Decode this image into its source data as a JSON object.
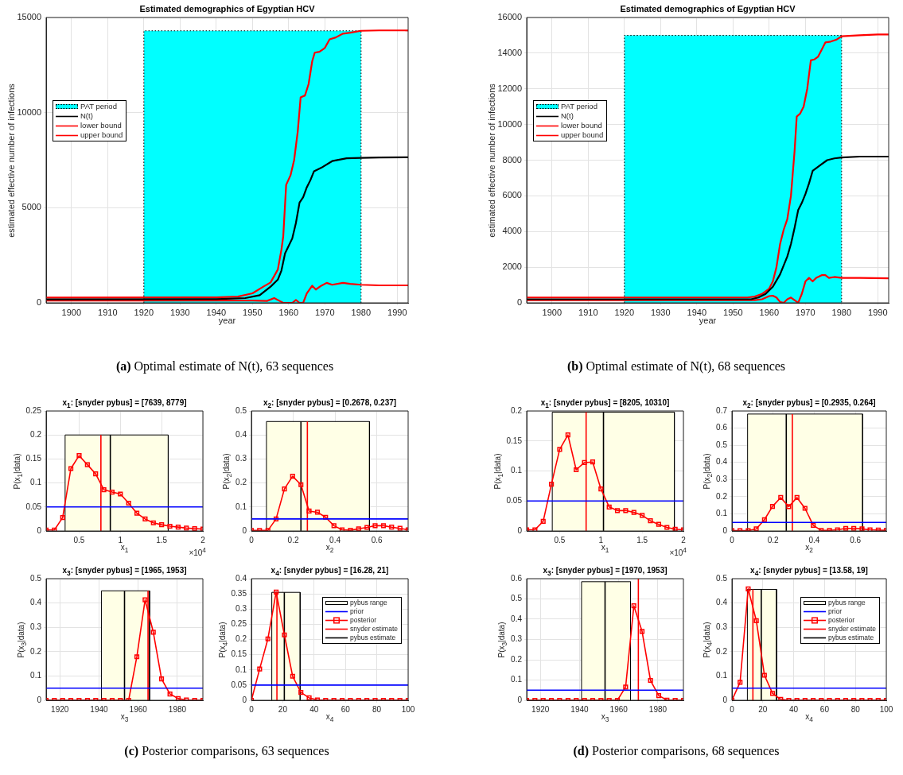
{
  "chart_data": [
    {
      "type": "line",
      "title": "Estimated demographics of Egyptian HCV",
      "xlabel": "year",
      "ylabel": "estimated effective number of infections",
      "xlim": [
        1893,
        1993
      ],
      "xticks": [
        1900,
        1910,
        1920,
        1930,
        1940,
        1950,
        1960,
        1970,
        1980,
        1990
      ],
      "ylim": [
        0,
        15000
      ],
      "yticks": [
        0,
        5000,
        10000,
        15000
      ],
      "grid": true,
      "legend": "left",
      "annotations": [
        "(a) Optimal estimate of N(t), 63 sequences"
      ],
      "series": [
        {
          "name": "PAT period",
          "type": "area",
          "color": "#00ffff",
          "line_style": "dotted",
          "x": [
            1920,
            1920,
            1980,
            1980
          ],
          "values": [
            0,
            14300,
            14300,
            0
          ]
        },
        {
          "name": "N(t)",
          "type": "line",
          "color": "#000000",
          "x": [
            1893,
            1940,
            1948,
            1952,
            1955,
            1957,
            1958,
            1959,
            1961,
            1962,
            1963,
            1964,
            1965,
            1966,
            1967,
            1969,
            1972,
            1976,
            1980,
            1985,
            1993
          ],
          "values": [
            180,
            190,
            250,
            400,
            850,
            1220,
            1700,
            2600,
            3390,
            4200,
            5270,
            5550,
            6070,
            6450,
            6920,
            7100,
            7450,
            7600,
            7620,
            7640,
            7650
          ]
        },
        {
          "name": "lower bound",
          "type": "line",
          "color": "#ff0000",
          "x": [
            1893,
            1950,
            1954,
            1956,
            1957.5,
            1958.5,
            1961,
            1962,
            1963,
            1964,
            1965,
            1966.5,
            1967.5,
            1969,
            1970.5,
            1972,
            1975,
            1977,
            1980,
            1985,
            1993
          ],
          "values": [
            120,
            120,
            100,
            250,
            100,
            0,
            0,
            150,
            0,
            0,
            500,
            900,
            700,
            900,
            1050,
            950,
            1050,
            1000,
            950,
            920,
            920
          ]
        },
        {
          "name": "upper bound",
          "type": "line",
          "color": "#ff0000",
          "x": [
            1893,
            1940,
            1946,
            1950,
            1953,
            1955,
            1957,
            1958,
            1958.5,
            1959.3,
            1960.5,
            1961.5,
            1962.5,
            1963.3,
            1964.5,
            1965.5,
            1966.5,
            1967.2,
            1968.5,
            1970,
            1971.3,
            1973,
            1975,
            1977,
            1980,
            1985,
            1993
          ],
          "values": [
            280,
            290,
            330,
            500,
            850,
            1070,
            1750,
            2800,
            3500,
            6200,
            6700,
            7500,
            9000,
            10800,
            10900,
            11500,
            12700,
            13150,
            13200,
            13400,
            13850,
            13950,
            14150,
            14200,
            14300,
            14320,
            14320
          ]
        }
      ]
    },
    {
      "type": "line",
      "title": "Estimated demographics of Egyptian HCV",
      "xlabel": "year",
      "ylabel": "estimated effective number of infections",
      "xlim": [
        1893,
        1993
      ],
      "xticks": [
        1900,
        1910,
        1920,
        1930,
        1940,
        1950,
        1960,
        1970,
        1980,
        1990
      ],
      "ylim": [
        0,
        16000
      ],
      "yticks": [
        0,
        2000,
        4000,
        6000,
        8000,
        10000,
        12000,
        14000,
        16000
      ],
      "grid": true,
      "legend": "left",
      "annotations": [
        "(b) Optimal estimate of N(t), 68 sequences"
      ],
      "series": [
        {
          "name": "PAT period",
          "type": "area",
          "color": "#00ffff",
          "line_style": "dotted",
          "x": [
            1920,
            1920,
            1980,
            1980
          ],
          "values": [
            0,
            15000,
            15000,
            0
          ]
        },
        {
          "name": "N(t)",
          "type": "line",
          "color": "#000000",
          "x": [
            1893,
            1955,
            1957,
            1959,
            1961,
            1963,
            1965,
            1966,
            1967,
            1968,
            1969,
            1970,
            1971,
            1972,
            1974,
            1976,
            1978,
            1980,
            1985,
            1993
          ],
          "values": [
            200,
            200,
            300,
            500,
            900,
            1600,
            2600,
            3300,
            4200,
            5200,
            5600,
            6100,
            6700,
            7400,
            7700,
            8000,
            8100,
            8150,
            8200,
            8200
          ]
        },
        {
          "name": "lower bound",
          "type": "line",
          "color": "#ff0000",
          "x": [
            1893,
            1956,
            1958,
            1960,
            1961,
            1962,
            1963,
            1964,
            1965,
            1966,
            1967,
            1968,
            1969,
            1970,
            1971,
            1972,
            1973,
            1974.5,
            1975.5,
            1976.5,
            1978,
            1980,
            1985,
            1993
          ],
          "values": [
            150,
            150,
            200,
            380,
            400,
            300,
            50,
            0,
            200,
            300,
            150,
            0,
            500,
            1200,
            1400,
            1200,
            1400,
            1550,
            1550,
            1400,
            1450,
            1400,
            1400,
            1380
          ]
        },
        {
          "name": "upper bound",
          "type": "line",
          "color": "#ff0000",
          "x": [
            1893,
            1954,
            1956,
            1958,
            1960,
            1961,
            1962,
            1963,
            1964,
            1965,
            1966,
            1967,
            1967.6,
            1968.5,
            1969.5,
            1970.5,
            1971.5,
            1972.5,
            1973.5,
            1974.5,
            1975.5,
            1977,
            1978.5,
            1980,
            1985,
            1990,
            1993
          ],
          "values": [
            300,
            300,
            350,
            500,
            800,
            1200,
            2000,
            3300,
            4100,
            4700,
            6000,
            8500,
            10450,
            10600,
            11000,
            12000,
            13600,
            13650,
            13800,
            14200,
            14600,
            14650,
            14750,
            14950,
            15000,
            15050,
            15050
          ]
        }
      ]
    },
    {
      "type": "line",
      "title": "x$_{1}$: [snyder pybus] = [7639, 8779]",
      "xlabel": "x$_{1}$",
      "ylabel": "P(x$_{1}$|data)",
      "xlim": [
        0.1,
        2
      ],
      "xticks": [
        0.5,
        1,
        1.5,
        2
      ],
      "ylim": [
        0,
        0.25
      ],
      "yticks": [
        0,
        0.05,
        0.1,
        0.15,
        0.2,
        0.25
      ],
      "grid": true,
      "annotations": [
        "×10$^{4}$"
      ],
      "series": [
        {
          "type": "area",
          "color": "#ffffe6",
          "x": [
            0.33,
            0.33,
            1.58,
            1.58
          ],
          "values": [
            0,
            0.2,
            0.2,
            0
          ]
        },
        {
          "color": "#0000ff",
          "x": [
            0.1,
            2
          ],
          "values": [
            0.05,
            0.05
          ]
        },
        {
          "color": "#ff0000",
          "marker": "square",
          "x": [
            0.1,
            0.2,
            0.3,
            0.4,
            0.5,
            0.6,
            0.7,
            0.8,
            0.9,
            1,
            1.1,
            1.2,
            1.3,
            1.4,
            1.5,
            1.6,
            1.7,
            1.8,
            1.9,
            2
          ],
          "values": [
            0.002,
            0.002,
            0.028,
            0.13,
            0.157,
            0.138,
            0.119,
            0.086,
            0.081,
            0.077,
            0.058,
            0.037,
            0.025,
            0.017,
            0.013,
            0.01,
            0.008,
            0.006,
            0.005,
            0.004
          ]
        },
        {
          "color": "#ff0000",
          "x": [
            0.7639,
            0.7639
          ],
          "values": [
            0,
            0.2
          ]
        },
        {
          "color": "#000000",
          "x": [
            0.8779,
            0.8779
          ],
          "values": [
            0,
            0.2
          ]
        }
      ]
    },
    {
      "type": "line",
      "title": "x$_{2}$: [snyder pybus] = [0.2678, 0.237]",
      "xlabel": "x$_{2}$",
      "ylabel": "P(x$_{2}$|data)",
      "xlim": [
        0,
        0.75
      ],
      "xticks": [
        0,
        0.2,
        0.4,
        0.6
      ],
      "ylim": [
        0,
        0.5
      ],
      "yticks": [
        0,
        0.1,
        0.2,
        0.3,
        0.4,
        0.5
      ],
      "grid": true,
      "series": [
        {
          "type": "area",
          "color": "#ffffe6",
          "x": [
            0.072,
            0.072,
            0.565,
            0.565
          ],
          "values": [
            0,
            0.456,
            0.456,
            0
          ]
        },
        {
          "type": "line",
          "color": "#0000ff",
          "x": [
            0,
            0.75
          ],
          "values": [
            0.05,
            0.05
          ]
        },
        {
          "type": "line",
          "color": "#ff0000",
          "marker": "square",
          "x": [
            0,
            0.039,
            0.079,
            0.118,
            0.158,
            0.197,
            0.237,
            0.276,
            0.316,
            0.355,
            0.395,
            0.434,
            0.474,
            0.513,
            0.553,
            0.592,
            0.632,
            0.671,
            0.711,
            0.75
          ],
          "values": [
            0.002,
            0.002,
            0.002,
            0.05,
            0.175,
            0.228,
            0.193,
            0.083,
            0.078,
            0.057,
            0.022,
            0.005,
            0.003,
            0.009,
            0.015,
            0.022,
            0.022,
            0.016,
            0.011,
            0.005
          ]
        },
        {
          "type": "line",
          "color": "#ff0000",
          "x": [
            0.2678,
            0.2678
          ],
          "values": [
            0,
            0.456
          ]
        },
        {
          "type": "line",
          "color": "#000000",
          "x": [
            0.237,
            0.237
          ],
          "values": [
            0,
            0.456
          ]
        }
      ]
    },
    {
      "type": "line",
      "title": "x$_{3}$: [snyder pybus] = [1965, 1953]",
      "xlabel": "x$_{3}$",
      "ylabel": "P(x$_{3}$|data)",
      "xlim": [
        1913,
        1993
      ],
      "xticks": [
        1920,
        1940,
        1960,
        1980
      ],
      "ylim": [
        0,
        0.5
      ],
      "yticks": [
        0,
        0.1,
        0.2,
        0.3,
        0.4,
        0.5
      ],
      "grid": true,
      "annotations": [
        "(c) Posterior comparisons, 63 sequences"
      ],
      "series": [
        {
          "type": "area",
          "color": "#ffffe6",
          "x": [
            1941.2,
            1941.2,
            1965.8,
            1965.8
          ],
          "values": [
            0,
            0.45,
            0.45,
            0
          ]
        },
        {
          "type": "line",
          "color": "#0000ff",
          "x": [
            1913,
            1993
          ],
          "values": [
            0.05,
            0.05
          ]
        },
        {
          "type": "line",
          "color": "#ff0000",
          "marker": "square",
          "x": [
            1913,
            1917.2,
            1921.4,
            1925.6,
            1929.8,
            1934.1,
            1938.3,
            1942.5,
            1946.7,
            1950.9,
            1955.1,
            1959.3,
            1963.5,
            1967.7,
            1971.9,
            1976.2,
            1980.4,
            1984.6,
            1988.8,
            1993
          ],
          "values": [
            0,
            0,
            0,
            0,
            0,
            0,
            0,
            0,
            0,
            0,
            0,
            0.179,
            0.413,
            0.28,
            0.088,
            0.026,
            0.007,
            0.001,
            0,
            0
          ]
        },
        {
          "type": "line",
          "color": "#ff0000",
          "x": [
            1965,
            1965
          ],
          "values": [
            0,
            0.45
          ]
        },
        {
          "type": "line",
          "color": "#000000",
          "x": [
            1953,
            1953
          ],
          "values": [
            0,
            0.45
          ]
        }
      ]
    },
    {
      "type": "line",
      "title": "x$_{4}$: [snyder pybus] = [16.28, 21]",
      "xlabel": "x$_{4}$",
      "ylabel": "P(x$_{4}$|data)",
      "xlim": [
        0,
        100
      ],
      "xticks": [
        0,
        20,
        40,
        60,
        80,
        100
      ],
      "ylim": [
        0,
        0.4
      ],
      "yticks": [
        0,
        0.05,
        0.1,
        0.15,
        0.2,
        0.25,
        0.3,
        0.35,
        0.4
      ],
      "grid": true,
      "legend": "top right",
      "series": [
        {
          "name": "pybus range",
          "type": "area",
          "color": "#ffffe6",
          "x": [
            13,
            13,
            31.1,
            31.1
          ],
          "values": [
            0,
            0.355,
            0.355,
            0
          ]
        },
        {
          "name": "prior",
          "type": "line",
          "color": "#0000ff",
          "x": [
            0,
            100
          ],
          "values": [
            0.05,
            0.05
          ]
        },
        {
          "name": "posterior",
          "type": "line",
          "color": "#ff0000",
          "marker": "square",
          "x": [
            0,
            5.26,
            10.53,
            15.79,
            21.05,
            26.32,
            31.58,
            36.84,
            42.11,
            47.37,
            52.63,
            57.89,
            63.16,
            68.42,
            73.68,
            78.95,
            84.21,
            89.47,
            94.74,
            100
          ],
          "values": [
            0,
            0.103,
            0.202,
            0.356,
            0.215,
            0.079,
            0.026,
            0.008,
            0.001,
            0,
            0,
            0,
            0,
            0,
            0,
            0,
            0,
            0,
            0,
            0
          ]
        },
        {
          "name": "snyder estimate",
          "type": "line",
          "color": "#ff0000",
          "x": [
            16.28,
            16.28
          ],
          "values": [
            0,
            0.355
          ]
        },
        {
          "name": "pybus estimate",
          "type": "line",
          "color": "#000000",
          "x": [
            21,
            21
          ],
          "values": [
            0,
            0.355
          ]
        }
      ]
    },
    {
      "type": "line",
      "title": "x$_{1}$: [snyder pybus] = [8205, 10310]",
      "xlabel": "x$_{1}$",
      "ylabel": "P(x$_{1}$|data)",
      "xlim": [
        0.1,
        2
      ],
      "xticks": [
        0.5,
        1,
        1.5,
        2
      ],
      "ylim": [
        0,
        0.2
      ],
      "yticks": [
        0,
        0.05,
        0.1,
        0.15,
        0.2
      ],
      "grid": true,
      "annotations": [
        "×10$^{4}$"
      ],
      "series": [
        {
          "type": "area",
          "color": "#ffffe6",
          "x": [
            0.41,
            0.41,
            1.89,
            1.89
          ],
          "values": [
            0,
            0.198,
            0.198,
            0
          ]
        },
        {
          "color": "#0000ff",
          "x": [
            0.1,
            2
          ],
          "values": [
            0.05,
            0.05
          ]
        },
        {
          "color": "#ff0000",
          "marker": "square",
          "x": [
            0.1,
            0.2,
            0.3,
            0.4,
            0.5,
            0.6,
            0.7,
            0.8,
            0.9,
            1,
            1.1,
            1.2,
            1.3,
            1.4,
            1.5,
            1.6,
            1.7,
            1.8,
            1.9,
            2
          ],
          "values": [
            0.002,
            0.002,
            0.016,
            0.078,
            0.136,
            0.16,
            0.102,
            0.114,
            0.115,
            0.07,
            0.04,
            0.034,
            0.034,
            0.031,
            0.026,
            0.017,
            0.011,
            0.006,
            0.003,
            0.002
          ]
        },
        {
          "color": "#ff0000",
          "x": [
            0.8205,
            0.8205
          ],
          "values": [
            0,
            0.198
          ]
        },
        {
          "color": "#000000",
          "x": [
            1.031,
            1.031
          ],
          "values": [
            0,
            0.198
          ]
        }
      ]
    },
    {
      "type": "line",
      "title": "x$_{2}$: [snyder pybus] = [0.2935, 0.264]",
      "xlabel": "x$_{2}$",
      "ylabel": "P(x$_{2}$|data)",
      "xlim": [
        0,
        0.75
      ],
      "xticks": [
        0,
        0.2,
        0.4,
        0.6
      ],
      "ylim": [
        0,
        0.7
      ],
      "yticks": [
        0,
        0.1,
        0.2,
        0.3,
        0.4,
        0.5,
        0.6,
        0.7
      ],
      "grid": true,
      "series": [
        {
          "type": "area",
          "color": "#ffffe6",
          "x": [
            0.076,
            0.076,
            0.635,
            0.635
          ],
          "values": [
            0,
            0.682,
            0.682,
            0
          ]
        },
        {
          "type": "line",
          "color": "#0000ff",
          "x": [
            0,
            0.75
          ],
          "values": [
            0.05,
            0.05
          ]
        },
        {
          "type": "line",
          "color": "#ff0000",
          "marker": "square",
          "x": [
            0,
            0.039,
            0.079,
            0.118,
            0.158,
            0.197,
            0.237,
            0.276,
            0.316,
            0.355,
            0.395,
            0.434,
            0.474,
            0.513,
            0.553,
            0.592,
            0.632,
            0.671,
            0.711,
            0.75
          ],
          "values": [
            0.002,
            0.002,
            0.002,
            0.012,
            0.066,
            0.143,
            0.195,
            0.142,
            0.195,
            0.132,
            0.033,
            0.003,
            0.003,
            0.007,
            0.015,
            0.015,
            0.012,
            0.007,
            0.005,
            0.003
          ]
        },
        {
          "type": "line",
          "color": "#ff0000",
          "x": [
            0.2935,
            0.2935
          ],
          "values": [
            0,
            0.682
          ]
        },
        {
          "type": "line",
          "color": "#000000",
          "x": [
            0.264,
            0.264
          ],
          "values": [
            0,
            0.682
          ]
        }
      ]
    },
    {
      "type": "line",
      "title": "x$_{3}$: [snyder pybus] = [1970, 1953]",
      "xlabel": "x$_{3}$",
      "ylabel": "P(x$_{3}$|data)",
      "xlim": [
        1913,
        1993
      ],
      "xticks": [
        1920,
        1940,
        1960,
        1980
      ],
      "ylim": [
        0,
        0.6
      ],
      "yticks": [
        0,
        0.1,
        0.2,
        0.3,
        0.4,
        0.5,
        0.6
      ],
      "grid": true,
      "annotations": [
        "(d) Posterior comparisons, 68 sequences"
      ],
      "series": [
        {
          "type": "area",
          "color": "#ffffe6",
          "x": [
            1941,
            1941,
            1966,
            1966
          ],
          "values": [
            0,
            0.585,
            0.585,
            0
          ]
        },
        {
          "type": "line",
          "color": "#0000ff",
          "x": [
            1913,
            1993
          ],
          "values": [
            0.05,
            0.05
          ]
        },
        {
          "type": "line",
          "color": "#ff0000",
          "marker": "square",
          "x": [
            1913,
            1917.2,
            1921.4,
            1925.6,
            1929.8,
            1934.1,
            1938.3,
            1942.5,
            1946.7,
            1950.9,
            1955.1,
            1959.3,
            1963.5,
            1967.7,
            1971.9,
            1976.2,
            1980.4,
            1984.6,
            1988.8,
            1993
          ],
          "values": [
            0,
            0,
            0,
            0,
            0,
            0,
            0,
            0,
            0,
            0,
            0,
            0,
            0.065,
            0.466,
            0.34,
            0.098,
            0.023,
            0.001,
            0,
            0
          ]
        },
        {
          "type": "line",
          "color": "#ff0000",
          "x": [
            1970,
            1970
          ],
          "values": [
            0,
            0.6
          ]
        },
        {
          "type": "line",
          "color": "#000000",
          "x": [
            1953,
            1953
          ],
          "values": [
            0,
            0.585
          ]
        }
      ]
    },
    {
      "type": "line",
      "title": "x$_{4}$: [snyder pybus] = [13.58, 19]",
      "xlabel": "x$_{4}$",
      "ylabel": "P(x$_{4}$|data)",
      "xlim": [
        0,
        100
      ],
      "xticks": [
        0,
        20,
        40,
        60,
        80,
        100
      ],
      "ylim": [
        0,
        0.5
      ],
      "yticks": [
        0,
        0.1,
        0.2,
        0.3,
        0.4,
        0.5
      ],
      "grid": true,
      "legend": "top right",
      "series": [
        {
          "name": "pybus range",
          "type": "area",
          "color": "#ffffe6",
          "x": [
            10,
            10,
            28.9,
            28.9
          ],
          "values": [
            0,
            0.456,
            0.456,
            0
          ]
        },
        {
          "name": "prior",
          "type": "line",
          "color": "#0000ff",
          "x": [
            0,
            100
          ],
          "values": [
            0.05,
            0.05
          ]
        },
        {
          "name": "posterior",
          "type": "line",
          "color": "#ff0000",
          "marker": "square",
          "x": [
            0,
            5.26,
            10.53,
            15.79,
            21.05,
            26.32,
            31.58,
            36.84,
            42.11,
            47.37,
            52.63,
            57.89,
            63.16,
            68.42,
            73.68,
            78.95,
            84.21,
            89.47,
            94.74,
            100
          ],
          "values": [
            0,
            0.074,
            0.458,
            0.327,
            0.103,
            0.028,
            0.004,
            0,
            0,
            0,
            0,
            0,
            0,
            0,
            0,
            0,
            0,
            0,
            0,
            0
          ]
        },
        {
          "name": "snyder estimate",
          "type": "line",
          "color": "#ff0000",
          "x": [
            13.58,
            13.58
          ],
          "values": [
            0,
            0.456
          ]
        },
        {
          "name": "pybus estimate",
          "type": "line",
          "color": "#000000",
          "x": [
            19,
            19
          ],
          "values": [
            0,
            0.456
          ]
        }
      ]
    }
  ]
}
